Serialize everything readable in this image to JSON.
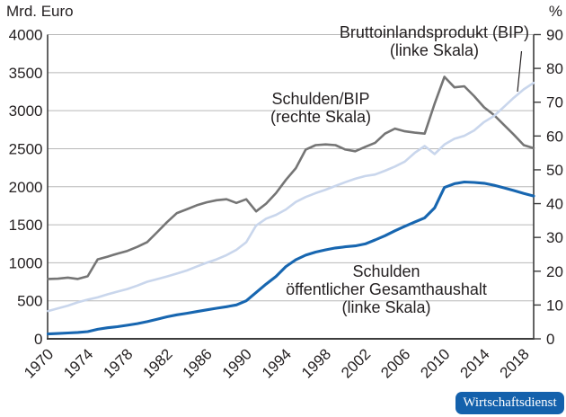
{
  "units": {
    "left": "Mrd. Euro",
    "right": "%"
  },
  "annotations": {
    "bip": [
      "Bruttoinlandsprodukt (BIP)",
      "(linke Skala)"
    ],
    "ratio": [
      "Schulden/BIP",
      "(rechte Skala)"
    ],
    "debt": [
      "Schulden",
      "öffentlicher Gesamthaushalt",
      "(linke Skala)"
    ]
  },
  "badge": {
    "label": "Wirtschaftsdienst",
    "bg": "#1461ac",
    "text_color": "#ffffff"
  },
  "colors": {
    "bip_line": "#c9d6ec",
    "debt_line": "#1766b0",
    "ratio_line": "#757575",
    "grid": "#b8b8b8",
    "axis": "#3c3c3c",
    "text": "#231f20"
  },
  "chart_data": {
    "type": "line",
    "title": "",
    "x": [
      1970,
      1971,
      1972,
      1973,
      1974,
      1975,
      1976,
      1977,
      1978,
      1979,
      1980,
      1981,
      1982,
      1983,
      1984,
      1985,
      1986,
      1987,
      1988,
      1989,
      1990,
      1991,
      1992,
      1993,
      1994,
      1995,
      1996,
      1997,
      1998,
      1999,
      2000,
      2001,
      2002,
      2003,
      2004,
      2005,
      2006,
      2007,
      2008,
      2009,
      2010,
      2011,
      2012,
      2013,
      2014,
      2015,
      2016,
      2017,
      2018,
      2019
    ],
    "x_ticks": [
      1970,
      1974,
      1978,
      1982,
      1986,
      1990,
      1994,
      1998,
      2002,
      2006,
      2010,
      2014,
      2018
    ],
    "left_axis": {
      "label": "Mrd. Euro",
      "min": 0,
      "max": 4000,
      "step": 500,
      "ticks": [
        0,
        500,
        1000,
        1500,
        2000,
        2500,
        3000,
        3500,
        4000
      ]
    },
    "right_axis": {
      "label": "%",
      "min": 0,
      "max": 90,
      "step": 10,
      "ticks": [
        0,
        10,
        20,
        30,
        40,
        50,
        60,
        70,
        80,
        90
      ]
    },
    "grid": true,
    "legend_position": "inline-annotations",
    "series": [
      {
        "name": "Bruttoinlandsprodukt (BIP)",
        "scale": "left",
        "unit": "Mrd. Euro",
        "color": "#c9d6ec",
        "stroke_width": 2.6,
        "values": [
          365,
          400,
          436,
          480,
          515,
          545,
          585,
          620,
          655,
          700,
          750,
          785,
          820,
          858,
          898,
          950,
          1000,
          1045,
          1100,
          1170,
          1270,
          1490,
          1580,
          1630,
          1700,
          1800,
          1865,
          1915,
          1960,
          2010,
          2060,
          2105,
          2140,
          2160,
          2210,
          2265,
          2330,
          2445,
          2535,
          2430,
          2555,
          2630,
          2670,
          2740,
          2850,
          2930,
          3050,
          3170,
          3280,
          3365
        ]
      },
      {
        "name": "Schulden öffentlicher Gesamthaushalt",
        "scale": "left",
        "unit": "Mrd. Euro",
        "color": "#1766b0",
        "stroke_width": 3.1,
        "values": [
          64,
          70,
          77,
          84,
          95,
          125,
          145,
          160,
          178,
          200,
          226,
          256,
          290,
          315,
          336,
          358,
          380,
          402,
          422,
          445,
          500,
          610,
          720,
          820,
          950,
          1040,
          1100,
          1140,
          1170,
          1195,
          1210,
          1222,
          1248,
          1300,
          1355,
          1420,
          1480,
          1535,
          1590,
          1720,
          1990,
          2040,
          2062,
          2056,
          2046,
          2020,
          1985,
          1950,
          1912,
          1878
        ]
      },
      {
        "name": "Schulden/BIP",
        "scale": "right",
        "unit": "%",
        "color": "#757575",
        "stroke_width": 2.6,
        "values": [
          17.7,
          17.8,
          18.1,
          17.7,
          18.5,
          23.5,
          24.3,
          25.2,
          26.0,
          27.2,
          28.6,
          31.5,
          34.5,
          37.2,
          38.3,
          39.5,
          40.4,
          41.0,
          41.3,
          40.2,
          41.3,
          37.7,
          40.0,
          43.1,
          47.0,
          50.5,
          56.0,
          57.3,
          57.5,
          57.3,
          56.0,
          55.5,
          56.8,
          58.0,
          60.7,
          62.2,
          61.4,
          61.0,
          60.7,
          69.5,
          77.5,
          74.4,
          74.7,
          71.8,
          68.5,
          66.2,
          63.3,
          60.4,
          57.3,
          56.4
        ]
      }
    ]
  }
}
